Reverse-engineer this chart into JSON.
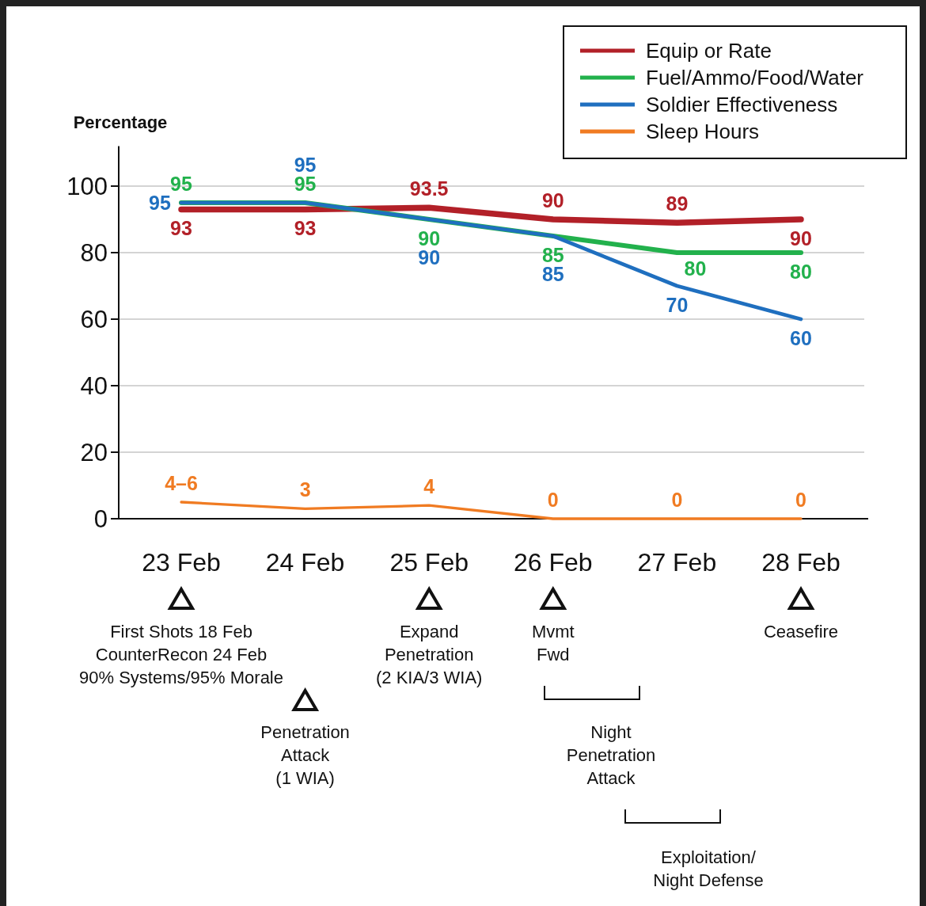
{
  "chart_data": {
    "type": "line",
    "ylabel": "Percentage",
    "categories": [
      "23 Feb",
      "24 Feb",
      "25 Feb",
      "26 Feb",
      "27 Feb",
      "28 Feb"
    ],
    "series": [
      {
        "name": "Equip or Rate",
        "color": "#b22028",
        "values": [
          93,
          93,
          93.5,
          90,
          89,
          90
        ],
        "value_labels": [
          "93",
          "93",
          "93.5",
          "90",
          "89",
          "90"
        ]
      },
      {
        "name": "Fuel/Ammo/Food/Water",
        "color": "#22b14c",
        "values": [
          95,
          95,
          90,
          85,
          80,
          80
        ],
        "value_labels": [
          "95",
          "95",
          "90",
          "85",
          "80",
          "80"
        ]
      },
      {
        "name": "Soldier Effectiveness",
        "color": "#1f6fbf",
        "values": [
          95,
          95,
          90,
          85,
          70,
          60
        ],
        "value_labels": [
          "95",
          "95",
          "90",
          "85",
          "70",
          "60"
        ]
      },
      {
        "name": "Sleep Hours",
        "color": "#f07b22",
        "values": [
          5,
          3,
          4,
          0,
          0,
          0
        ],
        "value_labels": [
          "4–6",
          "3",
          "4",
          "0",
          "0",
          "0"
        ]
      }
    ],
    "ylim": [
      0,
      112
    ],
    "yticks": [
      0,
      20,
      40,
      60,
      80,
      100
    ],
    "grid": "y",
    "legend": "top right",
    "marker": "none",
    "line_style": "solid",
    "annotations": [
      "First Shots 18 Feb\nCounterRecon 24 Feb\n90% Systems/95% Morale",
      "Penetration\nAttack\n(1 WIA)",
      "Expand\nPenetration\n(2 KIA/3 WIA)",
      "Mvmt\nFwd",
      "Night\nPenetration\nAttack",
      "Exploitation/\nNight Defense",
      "Ceasefire"
    ]
  }
}
